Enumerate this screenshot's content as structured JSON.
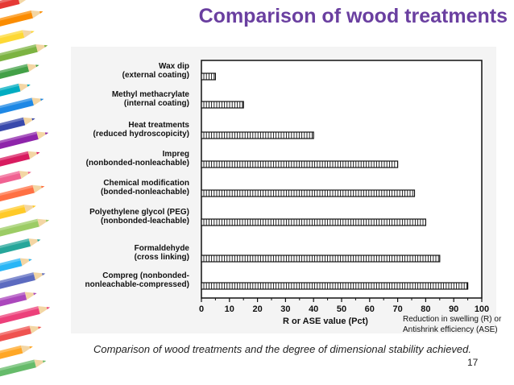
{
  "slide": {
    "title": "Comparison of wood treatments",
    "caption": "Comparison of wood treatments and the degree of dimensional stability achieved.",
    "note_line1": "Reduction in swelling (R) or",
    "note_line2": "Antishrink efficiency (ASE)",
    "page_number": "17",
    "title_color": "#6a3fa0",
    "decoration": "colored-pencils-border"
  },
  "chart_data": {
    "type": "bar",
    "orientation": "horizontal",
    "title": "",
    "xlabel": "R or ASE value (Pct)",
    "ylabel": "",
    "xlim": [
      0,
      100
    ],
    "xticks": [
      0,
      10,
      20,
      30,
      40,
      50,
      60,
      70,
      80,
      90,
      100
    ],
    "grid": false,
    "categories": [
      [
        "Wax dip",
        "(external coating)"
      ],
      [
        "Methyl methacrylate",
        "(internal coating)"
      ],
      [
        "Heat treatments",
        "(reduced hydroscopicity)"
      ],
      [
        "Impreg",
        "(nonbonded-nonleachable)"
      ],
      [
        "Chemical modification",
        "(bonded-nonleachable)"
      ],
      [
        "Polyethylene glycol (PEG)",
        "(nonbonded-leachable)"
      ],
      [
        "Formaldehyde",
        "(cross linking)"
      ],
      [
        "Compreg (nonbonded-",
        "nonleachable-compressed)"
      ]
    ],
    "values": [
      5,
      15,
      40,
      70,
      76,
      80,
      85,
      95
    ]
  }
}
